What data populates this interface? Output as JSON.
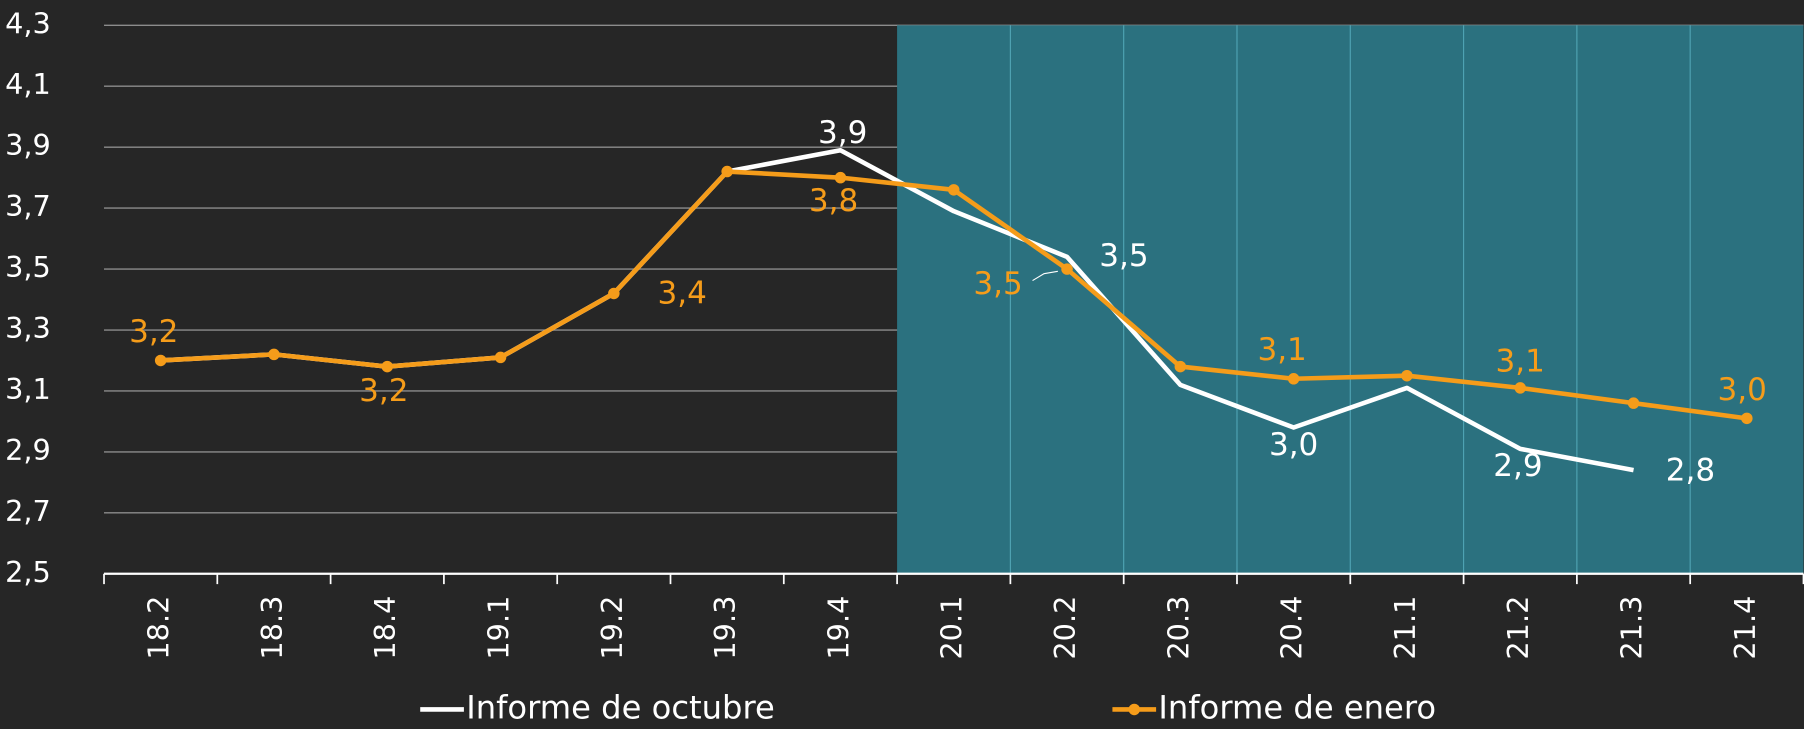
{
  "chart_data": {
    "type": "line",
    "categories": [
      "18.2",
      "18.3",
      "18.4",
      "19.1",
      "19.2",
      "19.3",
      "19.4",
      "20.1",
      "20.2",
      "20.3",
      "20.4",
      "21.1",
      "21.2",
      "21.3",
      "21.4"
    ],
    "series": [
      {
        "name": "Informe de octubre",
        "color": "#ffffff",
        "markers": false,
        "values": [
          3.2,
          3.22,
          3.18,
          3.21,
          3.42,
          3.82,
          3.89,
          3.69,
          3.54,
          3.12,
          2.98,
          3.11,
          2.91,
          2.84,
          null
        ],
        "value_labels": [
          null,
          null,
          null,
          null,
          null,
          null,
          "3,9",
          null,
          "3,5",
          null,
          "3,0",
          null,
          "2,9",
          "2,8",
          null
        ]
      },
      {
        "name": "Informe de enero",
        "color": "#f59c1a",
        "markers": true,
        "values": [
          3.2,
          3.22,
          3.18,
          3.21,
          3.42,
          3.82,
          3.8,
          3.76,
          3.5,
          3.18,
          3.14,
          3.15,
          3.11,
          3.06,
          3.01
        ],
        "value_labels": [
          "3,2",
          null,
          "3,2",
          null,
          "3,4",
          null,
          "3,8",
          null,
          "3,5",
          null,
          "3,1",
          null,
          "3,1",
          null,
          "3,0"
        ]
      }
    ],
    "ylim": [
      2.5,
      4.3
    ],
    "yticks": [
      {
        "value": 2.5,
        "label": "2,5"
      },
      {
        "value": 2.7,
        "label": "2,7"
      },
      {
        "value": 2.9,
        "label": "2,9"
      },
      {
        "value": 3.1,
        "label": "3,1"
      },
      {
        "value": 3.3,
        "label": "3,3"
      },
      {
        "value": 3.5,
        "label": "3,5"
      },
      {
        "value": 3.7,
        "label": "3,7"
      },
      {
        "value": 3.9,
        "label": "3,9"
      },
      {
        "value": 4.1,
        "label": "4,1"
      },
      {
        "value": 4.3,
        "label": "4,3"
      }
    ],
    "grid": true,
    "shaded_from": "20.1",
    "shade_color": "#2b717f",
    "legend": "bottom"
  }
}
